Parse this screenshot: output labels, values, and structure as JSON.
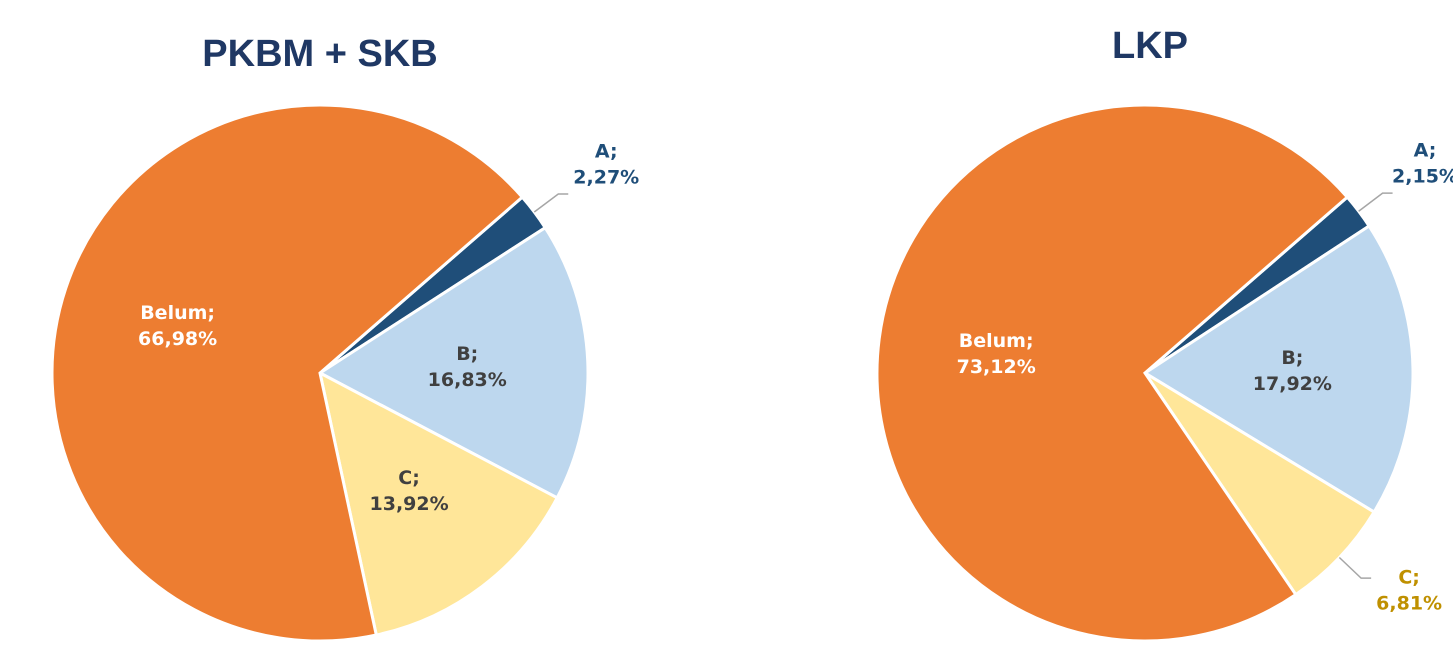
{
  "chart_data": [
    {
      "type": "pie",
      "title": "PKBM + SKB",
      "categories": [
        "A;",
        "B;",
        "C;",
        "Belum;"
      ],
      "values": [
        2.27,
        16.83,
        13.92,
        66.98
      ],
      "value_labels": [
        "2,27%",
        "16,83%",
        "13,92%",
        "66,98%"
      ],
      "colors": [
        "#1f4e79",
        "#bdd7ee",
        "#ffe699",
        "#ed7d31"
      ]
    },
    {
      "type": "pie",
      "title": "LKP",
      "categories": [
        "A;",
        "B;",
        "C;",
        "Belum;"
      ],
      "values": [
        2.15,
        17.92,
        6.81,
        73.12
      ],
      "value_labels": [
        "2,15%",
        "17,92%",
        "6,81%",
        "73,12%"
      ],
      "colors": [
        "#1f4e79",
        "#bdd7ee",
        "#ffe699",
        "#ed7d31"
      ]
    }
  ]
}
